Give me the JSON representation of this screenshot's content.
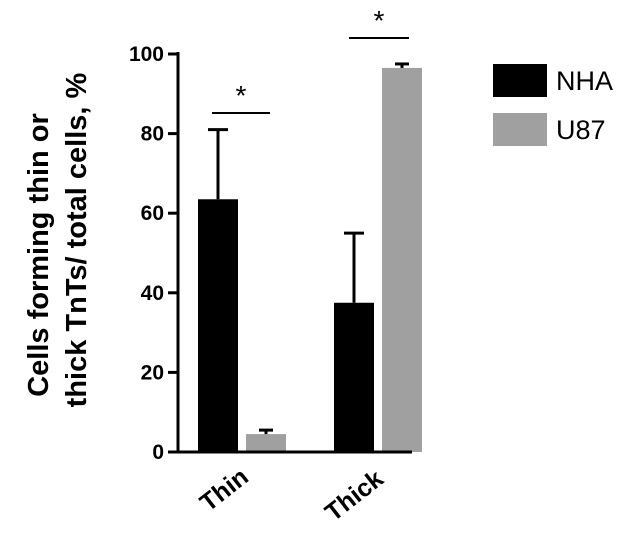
{
  "chart_data": {
    "type": "bar",
    "categories": [
      "Thin",
      "Thick"
    ],
    "series": [
      {
        "name": "NHA",
        "values": [
          63.5,
          37.5
        ],
        "errors": [
          17.5,
          17.5
        ],
        "color": "#000000"
      },
      {
        "name": "U87",
        "values": [
          4.5,
          96.5
        ],
        "errors": [
          1.0,
          1.0
        ],
        "color": "#a0a0a0"
      }
    ],
    "ylabel": "Cells forming thin or thick TnTs/ total cells, %",
    "ylabel_lines": [
      "Cells forming thin or",
      "thick TnTs/ total cells, %"
    ],
    "yticks": [
      "0",
      "20",
      "40",
      "60",
      "80",
      "100"
    ],
    "ylim": [
      0,
      100
    ],
    "significance": [
      {
        "category": "Thin",
        "label": "*"
      },
      {
        "category": "Thick",
        "label": "*"
      }
    ],
    "legend_position": "top-right",
    "grid": false
  }
}
